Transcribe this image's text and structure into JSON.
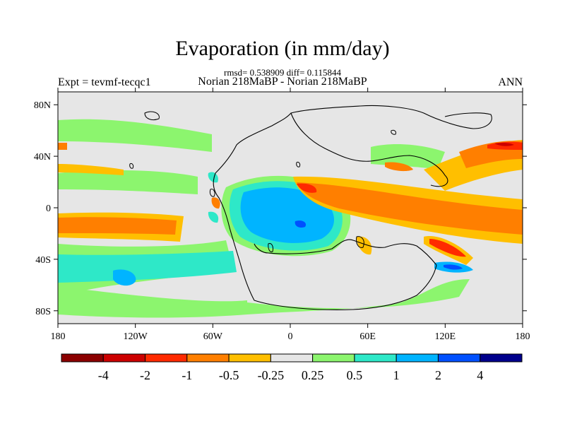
{
  "header": {
    "title": "Evaporation (in mm/day)",
    "stats": "rmsd= 0.538909 diff= 0.115844",
    "experiment": "Expt = tevmf-tecqc1",
    "comparison": "Norian 218MaBP - Norian 218MaBP",
    "season": "ANN"
  },
  "map": {
    "projection": "cylindrical-equidistant",
    "lon_range": [
      -180,
      180
    ],
    "lat_range": [
      -90,
      90
    ],
    "background_color": "#e6e6e6",
    "lat_ticks": [
      {
        "lat": 80,
        "label": "80N"
      },
      {
        "lat": 40,
        "label": "40N"
      },
      {
        "lat": 0,
        "label": "0"
      },
      {
        "lat": -40,
        "label": "40S"
      },
      {
        "lat": -80,
        "label": "80S"
      }
    ],
    "lon_ticks": [
      {
        "lon": -180,
        "label": "180"
      },
      {
        "lon": -120,
        "label": "120W"
      },
      {
        "lon": -60,
        "label": "60W"
      },
      {
        "lon": 0,
        "label": "0"
      },
      {
        "lon": 60,
        "label": "60E"
      },
      {
        "lon": 120,
        "label": "120E"
      },
      {
        "lon": 180,
        "label": "180"
      }
    ]
  },
  "colorbar": {
    "colors": [
      "#8b0000",
      "#cc0000",
      "#ff2a00",
      "#ff7f00",
      "#ffbf00",
      "#e6e6e6",
      "#8cf56e",
      "#2ee8c8",
      "#00b4ff",
      "#0050ff",
      "#00008c"
    ],
    "labels": [
      "-4",
      "-2",
      "-1",
      "-0.5",
      "-0.25",
      "0.25",
      "0.5",
      "1",
      "2",
      "4"
    ]
  }
}
